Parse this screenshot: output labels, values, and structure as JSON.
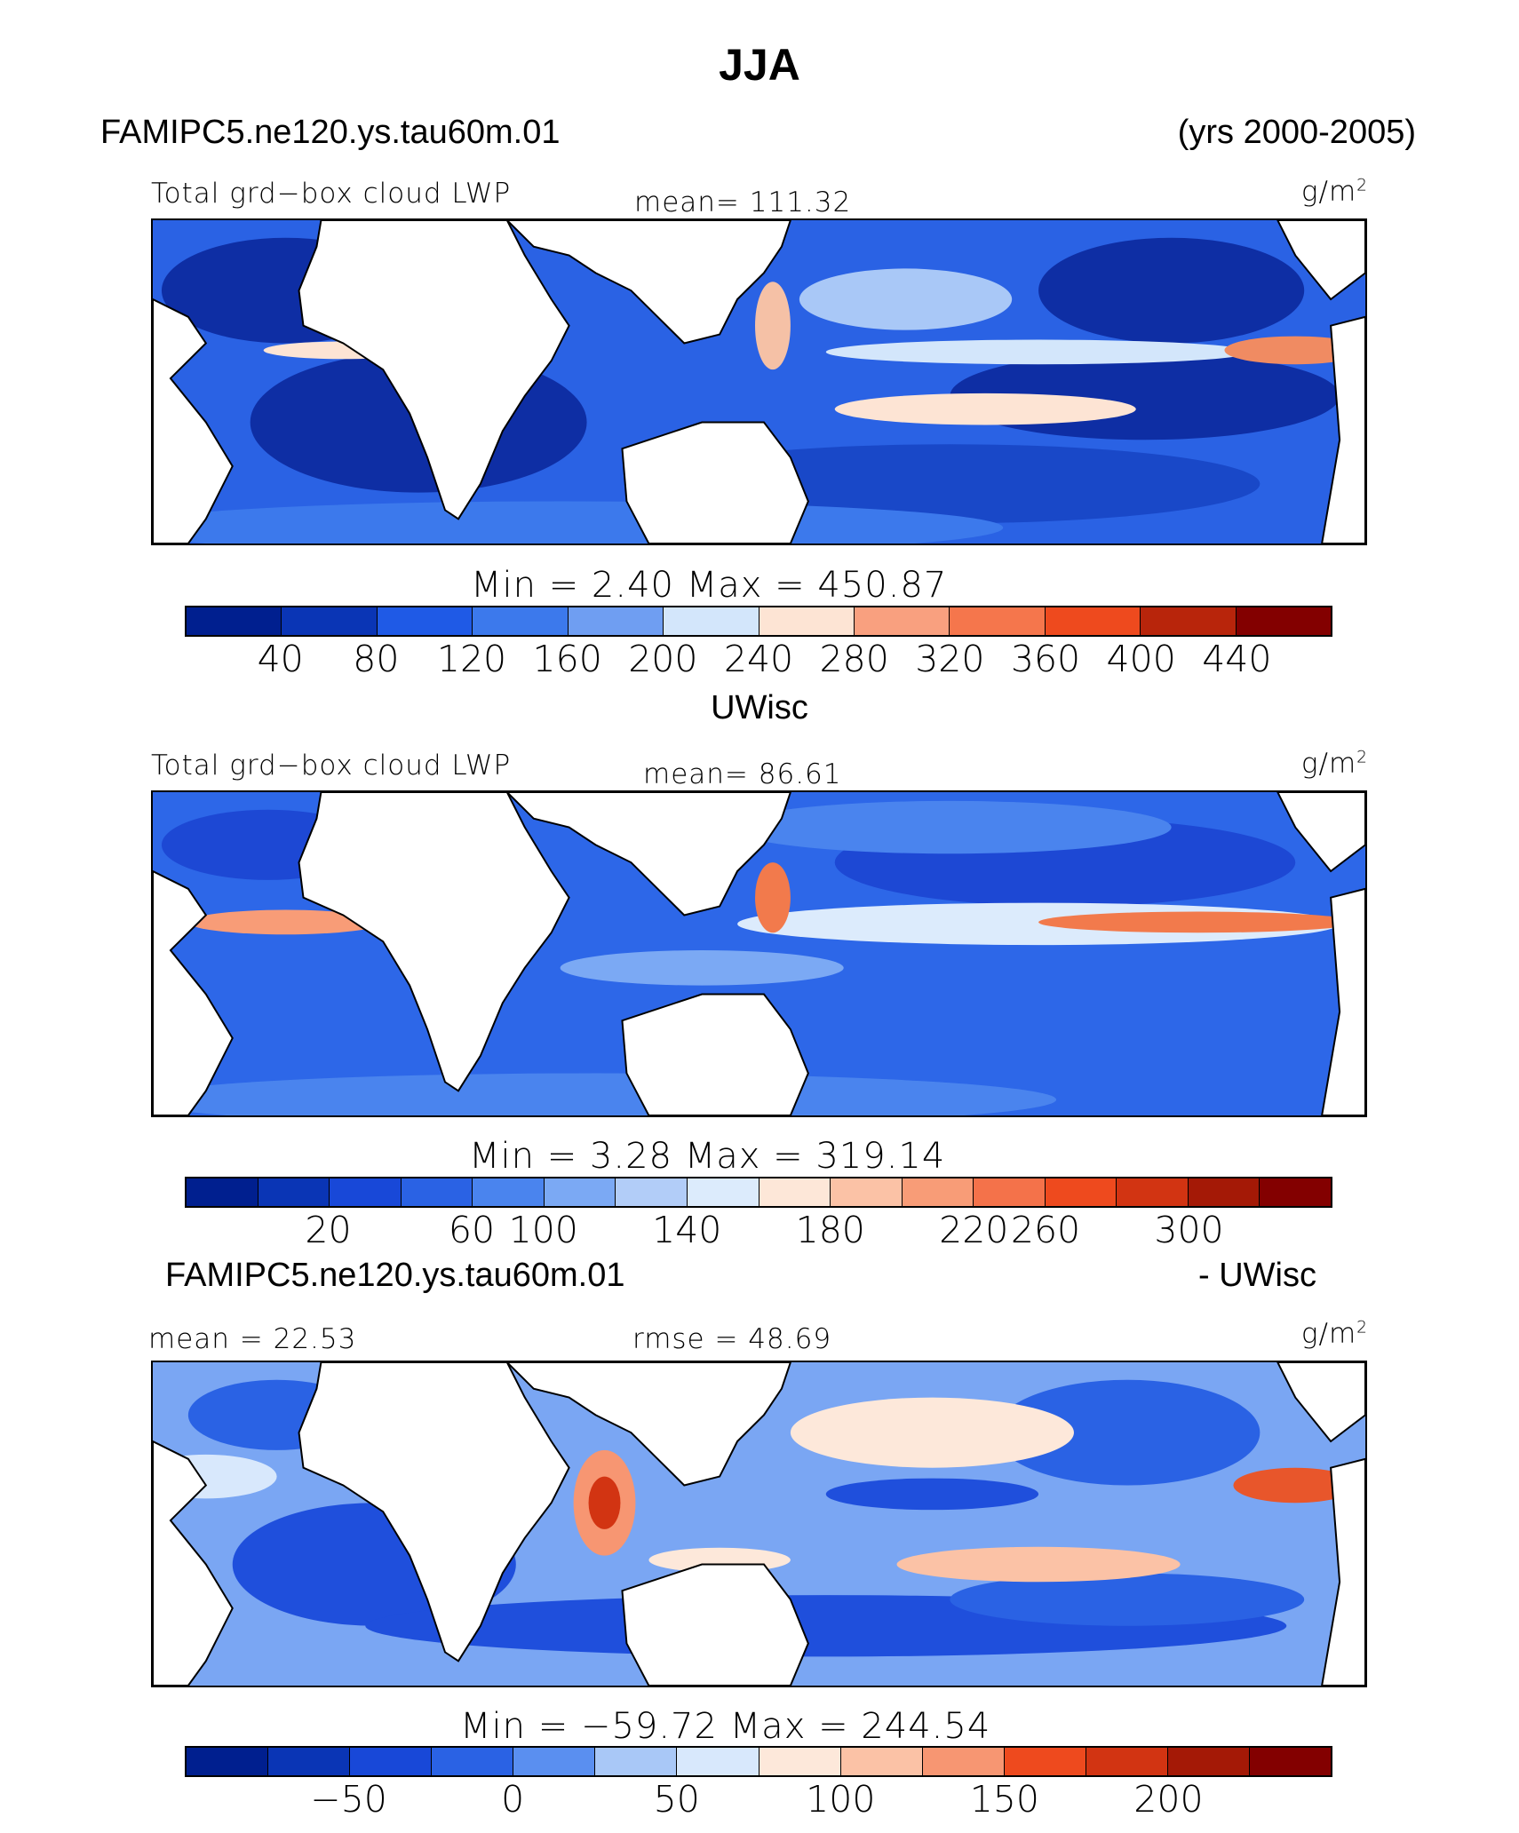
{
  "title": "JJA",
  "header": {
    "case": "FAMIPC5.ne120.ys.tau60m.01",
    "years": "(yrs 2000-2005)"
  },
  "panels": [
    {
      "id": "model",
      "variable": "Total grd−box cloud LWP",
      "stat": "mean=  111.32",
      "units_base": "g/m",
      "units_exp": "2",
      "minmax": "Min =    2.40  Max  =  450.87",
      "colorbar": {
        "colors": [
          "#001f8f",
          "#0a35b5",
          "#1f5ae6",
          "#3c79ec",
          "#6f9ef2",
          "#d3e6fb",
          "#fde4d4",
          "#f9a07f",
          "#f5764c",
          "#ee4a1e",
          "#b8250b",
          "#830000"
        ],
        "ticks": [
          "40",
          "80",
          "120",
          "160",
          "200",
          "240",
          "280",
          "320",
          "360",
          "400",
          "440"
        ]
      },
      "map": {
        "ocean": "#2a62e4",
        "dry": "#0e2ea4",
        "wet": "#f08b62"
      }
    },
    {
      "id": "obs",
      "subtitle": "UWisc",
      "variable": "Total grd−box cloud LWP",
      "stat": "mean=   86.61",
      "units_base": "g/m",
      "units_exp": "2",
      "minmax": "Min =    3.28  Max  =  319.14",
      "colorbar": {
        "colors": [
          "#001f8f",
          "#0a35b5",
          "#1848d8",
          "#2a62e4",
          "#4a84ee",
          "#7ba9f4",
          "#b2cdf8",
          "#dcebfc",
          "#fde7d8",
          "#fbc2a6",
          "#f89c77",
          "#f4724a",
          "#ee4a1e",
          "#d23412",
          "#a41906",
          "#830000"
        ],
        "ticks": [
          "20",
          "60",
          "100",
          "140",
          "180",
          "220",
          "260",
          "300"
        ]
      },
      "map": {
        "ocean": "#2d67e8",
        "dry": "#1d48d4",
        "wet": "#f27a4c"
      }
    },
    {
      "id": "diff",
      "case": "FAMIPC5.ne120.ys.tau60m.01",
      "minus": "- UWisc",
      "stat_left": "mean =   22.53",
      "stat_mid": "rmse =   48.69",
      "units_base": "g/m",
      "units_exp": "2",
      "minmax": "Min  =  −59.72  Max  =  244.54",
      "colorbar": {
        "colors": [
          "#001f8f",
          "#0a35b5",
          "#1848d8",
          "#2a62e4",
          "#5a8ff0",
          "#a9c8f7",
          "#d8e8fc",
          "#fde8da",
          "#fbc2a6",
          "#f79672",
          "#ee4a1e",
          "#d23412",
          "#a41906",
          "#830000"
        ],
        "ticks": [
          "−50",
          "0",
          "50",
          "100",
          "150",
          "200"
        ]
      },
      "map": {
        "ocean": "#7aa6f3",
        "dry": "#1f4fdc",
        "wet": "#e8562b"
      }
    }
  ]
}
